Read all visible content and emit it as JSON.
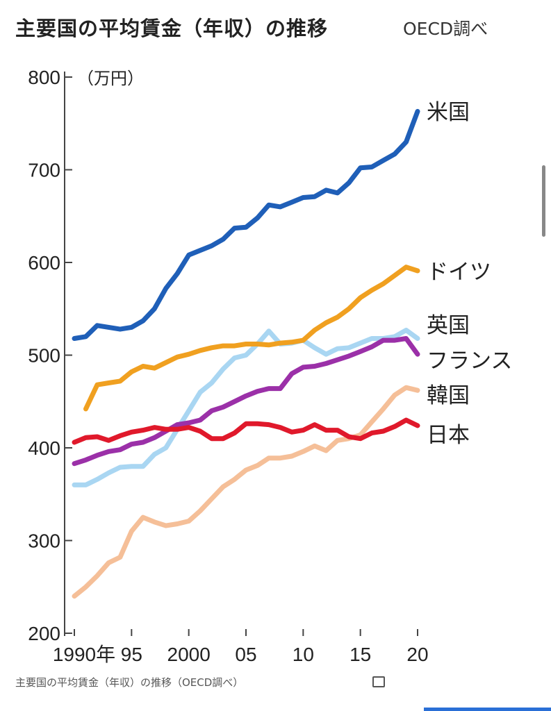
{
  "chart_data": {
    "type": "line",
    "title": "主要国の平均賃金（年収）の推移",
    "source": "OECD調べ",
    "ylabel": "（万円）",
    "xlabel": "",
    "ylim": [
      200,
      800
    ],
    "xlim": [
      1990,
      2020
    ],
    "yticks": [
      200,
      300,
      400,
      500,
      600,
      700,
      800
    ],
    "xticks": [
      {
        "value": 1990,
        "label": "1990年"
      },
      {
        "value": 1995,
        "label": "95"
      },
      {
        "value": 2000,
        "label": "2000"
      },
      {
        "value": 2005,
        "label": "05"
      },
      {
        "value": 2010,
        "label": "10"
      },
      {
        "value": 2015,
        "label": "15"
      },
      {
        "value": 2020,
        "label": "20"
      }
    ],
    "grid": false,
    "legend": "direct labels at line ends (right)",
    "x": [
      1990,
      1991,
      1992,
      1993,
      1994,
      1995,
      1996,
      1997,
      1998,
      1999,
      2000,
      2001,
      2002,
      2003,
      2004,
      2005,
      2006,
      2007,
      2008,
      2009,
      2010,
      2011,
      2012,
      2013,
      2014,
      2015,
      2016,
      2017,
      2018,
      2019,
      2020
    ],
    "series": [
      {
        "name": "米国",
        "color": "#1f5fb8",
        "values": [
          518,
          520,
          532,
          530,
          528,
          530,
          537,
          550,
          572,
          588,
          608,
          613,
          618,
          625,
          637,
          638,
          648,
          662,
          660,
          665,
          670,
          671,
          678,
          675,
          686,
          702,
          703,
          710,
          717,
          730,
          763
        ]
      },
      {
        "name": "ドイツ",
        "color": "#f0a020",
        "values": [
          null,
          442,
          468,
          470,
          472,
          482,
          488,
          486,
          492,
          498,
          501,
          505,
          508,
          510,
          510,
          512,
          512,
          511,
          513,
          514,
          516,
          527,
          535,
          541,
          550,
          562,
          570,
          577,
          586,
          595,
          591
        ]
      },
      {
        "name": "英国",
        "color": "#a9d6f2",
        "values": [
          360,
          360,
          366,
          373,
          379,
          380,
          380,
          393,
          400,
          420,
          440,
          460,
          470,
          485,
          497,
          500,
          512,
          526,
          512,
          513,
          516,
          508,
          501,
          507,
          508,
          513,
          518,
          518,
          520,
          527,
          518
        ]
      },
      {
        "name": "フランス",
        "color": "#9b30a8",
        "values": [
          383,
          387,
          392,
          396,
          398,
          404,
          406,
          411,
          418,
          425,
          427,
          430,
          440,
          444,
          450,
          456,
          461,
          464,
          464,
          480,
          487,
          488,
          491,
          495,
          499,
          504,
          509,
          516,
          516,
          518,
          501
        ]
      },
      {
        "name": "韓国",
        "color": "#f5bf98",
        "values": [
          240,
          250,
          262,
          276,
          282,
          310,
          325,
          320,
          316,
          318,
          321,
          332,
          345,
          358,
          366,
          376,
          381,
          389,
          389,
          391,
          396,
          402,
          397,
          408,
          410,
          414,
          428,
          442,
          457,
          465,
          462
        ]
      },
      {
        "name": "日本",
        "color": "#e0192b",
        "values": [
          406,
          411,
          412,
          408,
          413,
          417,
          419,
          422,
          420,
          420,
          422,
          418,
          410,
          410,
          416,
          426,
          426,
          425,
          422,
          417,
          419,
          425,
          419,
          419,
          412,
          410,
          416,
          418,
          423,
          430,
          424
        ]
      }
    ]
  },
  "caption": "主要国の平均賃金（年収）の推移（OECD調べ）",
  "caption_icon": "image-icon"
}
